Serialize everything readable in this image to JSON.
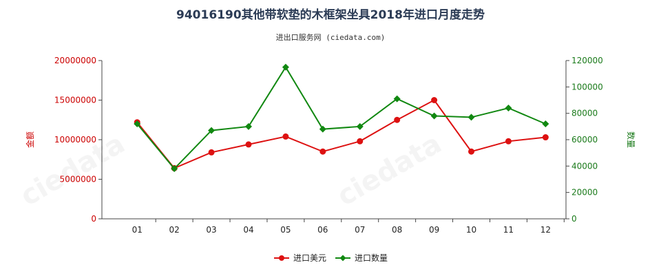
{
  "chart_data": {
    "type": "line",
    "title": "94016190其他带软垫的木框架坐具2018年进口月度走势",
    "subtitle": "进出口服务网 (ciedata.com)",
    "categories": [
      "01",
      "02",
      "03",
      "04",
      "05",
      "06",
      "07",
      "08",
      "09",
      "10",
      "11",
      "12"
    ],
    "y_left": {
      "label": "金额",
      "lim": [
        0,
        20000000
      ],
      "ticks": [
        "0",
        "5000000",
        "10000000",
        "15000000",
        "20000000"
      ],
      "color": "#dd1111"
    },
    "y_right": {
      "label": "数量",
      "lim": [
        0,
        120000
      ],
      "ticks": [
        "0",
        "20000",
        "40000",
        "60000",
        "80000",
        "100000",
        "120000"
      ],
      "color": "#118811"
    },
    "series": [
      {
        "name": "进口美元",
        "axis": "left",
        "color": "#dd1111",
        "marker": "circle",
        "values": [
          12200000,
          6400000,
          8400000,
          9400000,
          10400000,
          8500000,
          9800000,
          12500000,
          15000000,
          8500000,
          9800000,
          10300000
        ]
      },
      {
        "name": "进口数量",
        "axis": "right",
        "color": "#118811",
        "marker": "diamond",
        "values": [
          72000,
          38000,
          67000,
          70000,
          115000,
          68000,
          70000,
          91000,
          78000,
          77000,
          84000,
          72000
        ]
      }
    ],
    "legend_position": "bottom-center",
    "grid": false
  }
}
